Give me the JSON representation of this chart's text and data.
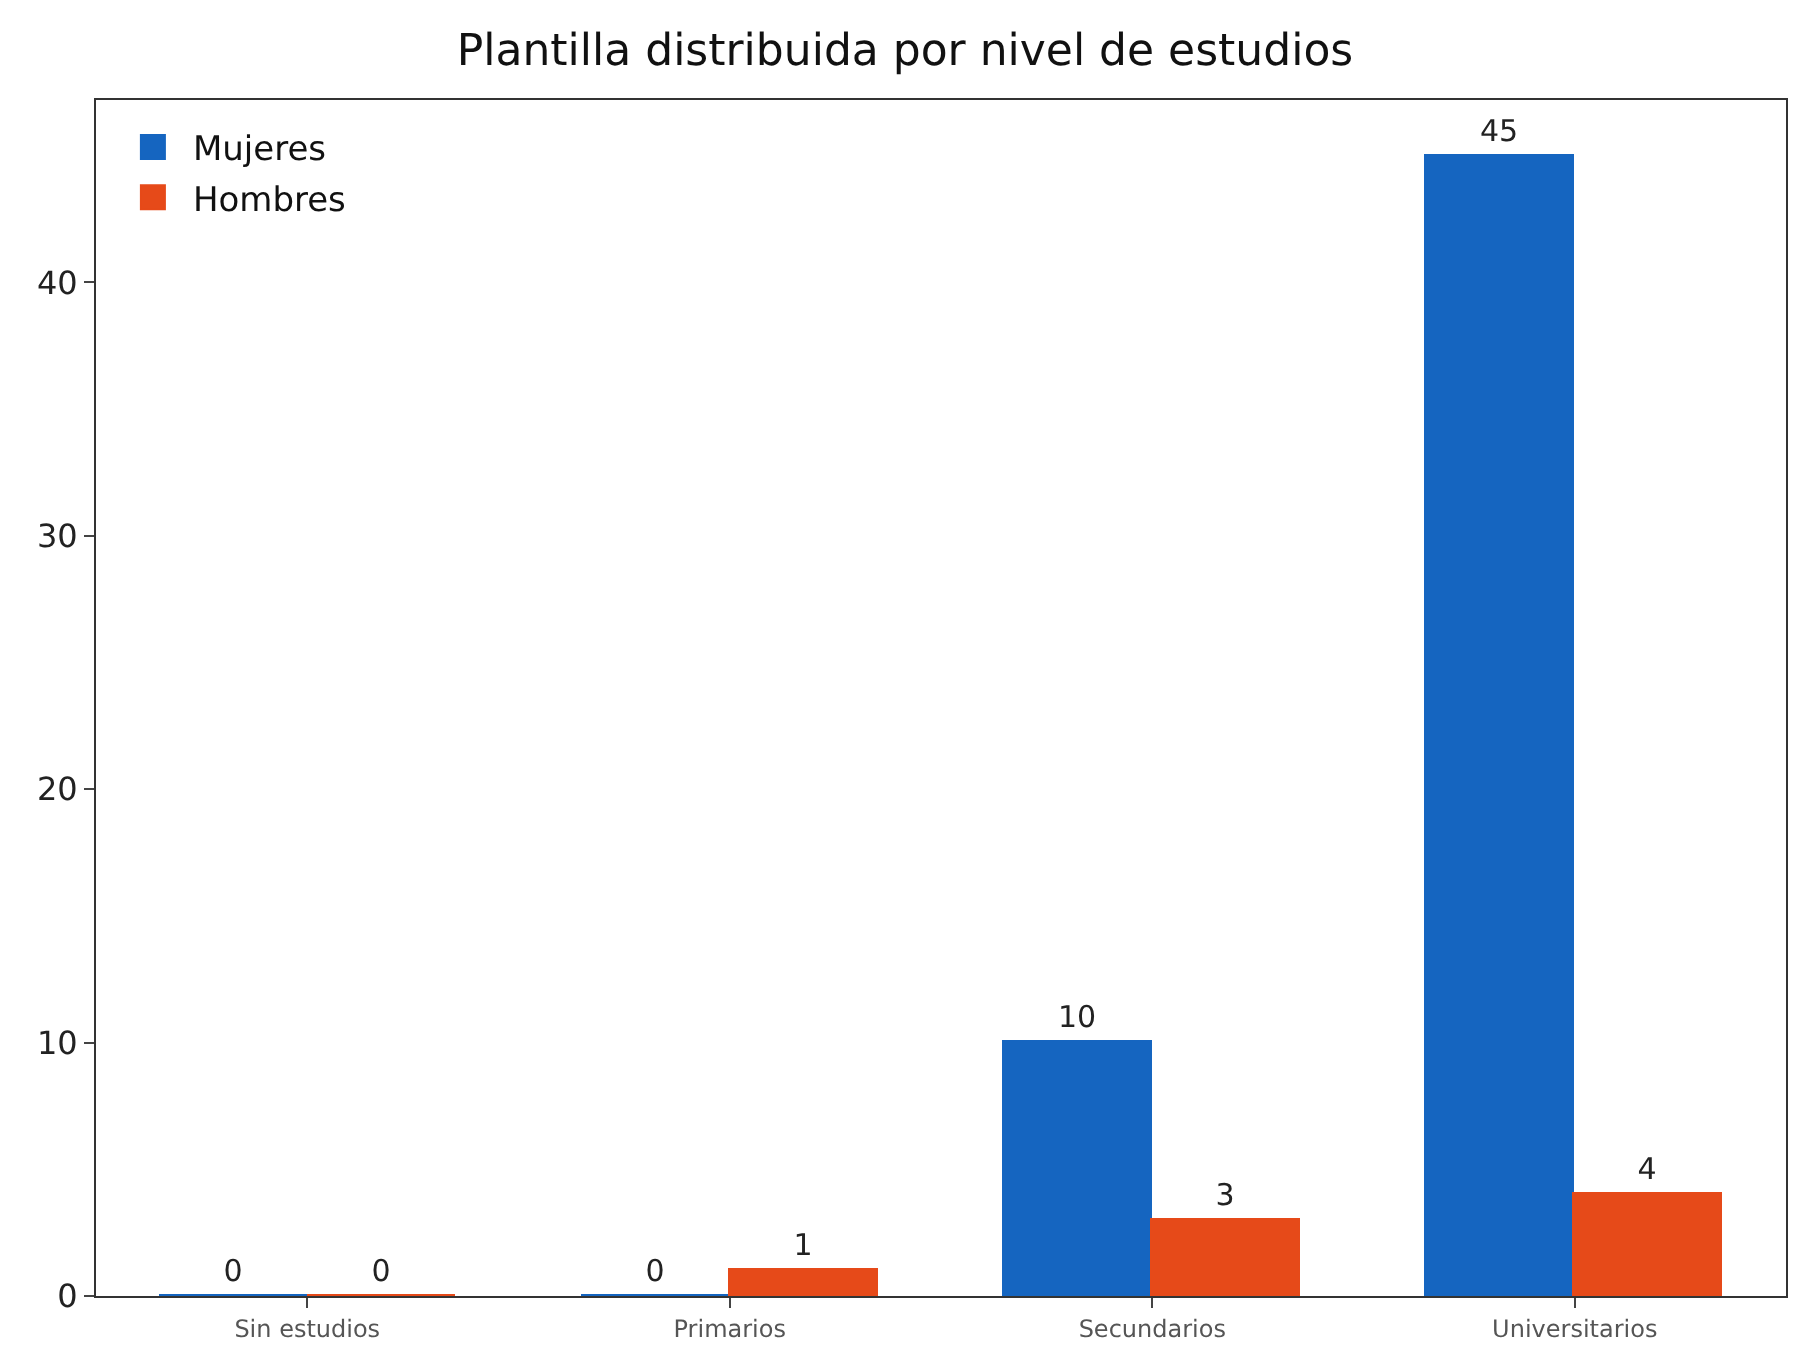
{
  "chart_data": {
    "type": "bar",
    "title": "Plantilla distribuida por nivel de estudios",
    "categories": [
      "Sin estudios",
      "Primarios",
      "Secundarios",
      "Universitarios"
    ],
    "series": [
      {
        "name": "Mujeres",
        "color": "#1565c0",
        "values": [
          0,
          0,
          10,
          45
        ]
      },
      {
        "name": "Hombres",
        "color": "#e64a19",
        "values": [
          0,
          1,
          3,
          4
        ]
      }
    ],
    "ylim": [
      0,
      47.2
    ],
    "yticks": [
      0,
      10,
      20,
      30,
      40
    ],
    "grid": false,
    "legend": "top left",
    "data_labels": true
  }
}
